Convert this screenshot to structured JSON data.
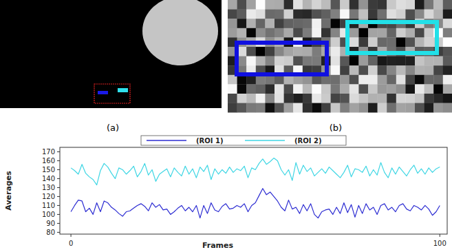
{
  "panels": [
    "(a)",
    "(b)"
  ],
  "chart_data": {
    "type": "line",
    "x_label": "Frames",
    "y_label": "Averages",
    "x": [
      0,
      1,
      2,
      3,
      4,
      5,
      6,
      7,
      8,
      9,
      10,
      11,
      12,
      13,
      14,
      15,
      16,
      17,
      18,
      19,
      20,
      21,
      22,
      23,
      24,
      25,
      26,
      27,
      28,
      29,
      30,
      31,
      32,
      33,
      34,
      35,
      36,
      37,
      38,
      39,
      40,
      41,
      42,
      43,
      44,
      45,
      46,
      47,
      48,
      49,
      50,
      51,
      52,
      53,
      54,
      55,
      56,
      57,
      58,
      59,
      60,
      61,
      62,
      63,
      64,
      65,
      66,
      67,
      68,
      69,
      70,
      71,
      72,
      73,
      74,
      75,
      76,
      77,
      78,
      79,
      80,
      81,
      82,
      83,
      84,
      85,
      86,
      87,
      88,
      89,
      90,
      91,
      92,
      93,
      94,
      95,
      96,
      97,
      98,
      99,
      100
    ],
    "series": [
      {
        "name": "(ROI 1)",
        "color": "#2c2cd2",
        "values": [
          103,
          110,
          116,
          115,
          103,
          107,
          100,
          113,
          103,
          115,
          113,
          108,
          105,
          101,
          98,
          103,
          104,
          107,
          110,
          112,
          109,
          104,
          113,
          108,
          111,
          105,
          106,
          100,
          103,
          107,
          110,
          104,
          108,
          103,
          110,
          96,
          110,
          101,
          113,
          105,
          103,
          109,
          112,
          106,
          107,
          110,
          108,
          112,
          103,
          110,
          113,
          121,
          129,
          122,
          125,
          120,
          115,
          108,
          104,
          116,
          106,
          108,
          101,
          111,
          104,
          112,
          100,
          96,
          103,
          105,
          106,
          100,
          108,
          101,
          113,
          102,
          111,
          97,
          110,
          101,
          112,
          105,
          108,
          100,
          110,
          112,
          105,
          108,
          103,
          110,
          112,
          106,
          104,
          110,
          108,
          105,
          110,
          106,
          99,
          103,
          110
        ]
      },
      {
        "name": "(ROI 2)",
        "color": "#3ed6e4",
        "values": [
          152,
          149,
          145,
          156,
          146,
          142,
          139,
          133,
          149,
          157,
          153,
          146,
          140,
          152,
          150,
          145,
          149,
          154,
          142,
          148,
          157,
          144,
          150,
          137,
          145,
          148,
          151,
          142,
          152,
          147,
          143,
          154,
          145,
          151,
          141,
          153,
          148,
          155,
          139,
          151,
          145,
          150,
          146,
          153,
          147,
          151,
          149,
          154,
          141,
          152,
          150,
          157,
          162,
          156,
          159,
          163,
          160,
          150,
          144,
          150,
          138,
          158,
          145,
          155,
          148,
          152,
          143,
          147,
          151,
          146,
          153,
          149,
          145,
          141,
          147,
          155,
          142,
          151,
          150,
          147,
          154,
          143,
          150,
          144,
          158,
          147,
          141,
          152,
          145,
          153,
          148,
          143,
          150,
          155,
          146,
          151,
          145,
          152,
          147,
          151,
          153
        ]
      }
    ],
    "xlim": [
      -3,
      102
    ],
    "ylim": [
      78,
      175
    ],
    "xticks": [
      0,
      100
    ],
    "yticks": [
      80,
      90,
      100,
      110,
      120,
      130,
      140,
      150,
      160,
      170
    ],
    "grid": false,
    "legend": "top"
  }
}
